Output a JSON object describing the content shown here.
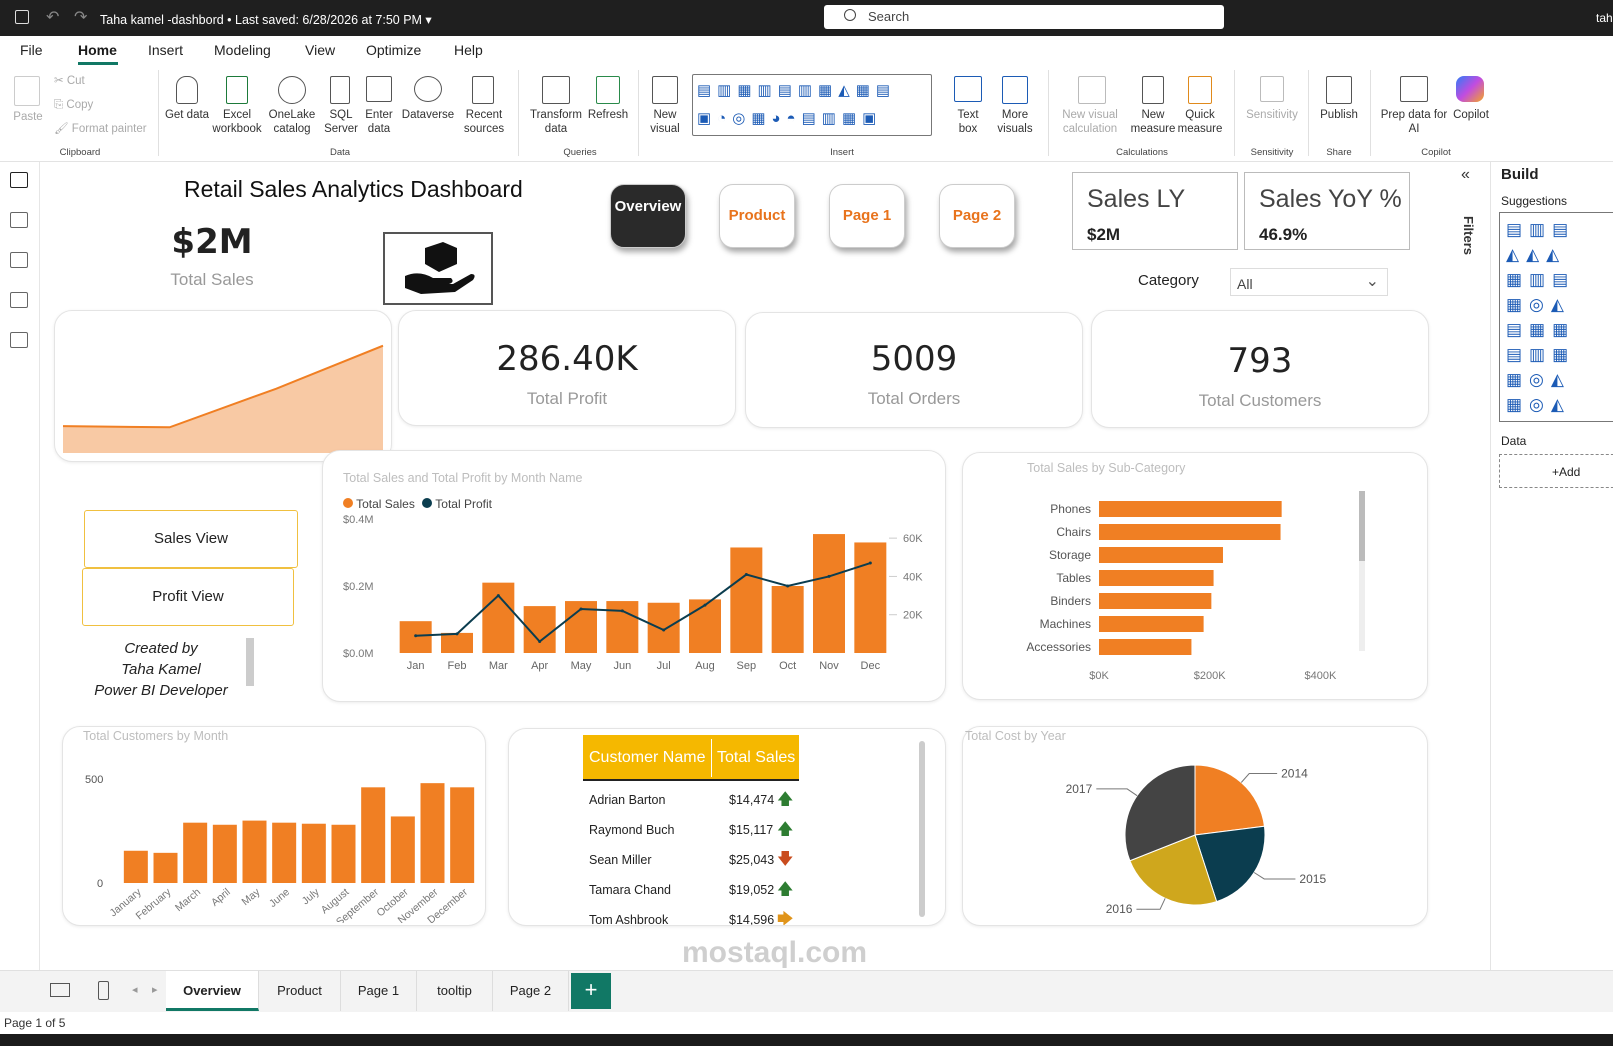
{
  "window": {
    "title": "Taha kamel -dashbord",
    "saved": "Last saved: 6/28/2026 at 7:50 PM",
    "search_placeholder": "Search",
    "user": "tah"
  },
  "menu": [
    "File",
    "Home",
    "Insert",
    "Modeling",
    "View",
    "Optimize",
    "Help"
  ],
  "ribbon": {
    "paste": "Paste",
    "cut": "Cut",
    "copy": "Copy",
    "format_painter": "Format painter",
    "clipboard": "Clipboard",
    "get_data": "Get data",
    "excel": "Excel workbook",
    "onelake": "OneLake catalog",
    "sql": "SQL Server",
    "enter": "Enter data",
    "dataverse": "Dataverse",
    "recent": "Recent sources",
    "data": "Data",
    "transform": "Transform data",
    "refresh": "Refresh",
    "queries": "Queries",
    "new_visual": "New visual",
    "text_box": "Text box",
    "more_visuals": "More visuals",
    "insert": "Insert",
    "new_visual_calc": "New visual calculation",
    "new_measure": "New measure",
    "quick_measure": "Quick measure",
    "calculations": "Calculations",
    "sensitivity": "Sensitivity",
    "sensitivity_group": "Sensitivity",
    "publish": "Publish",
    "share": "Share",
    "prep": "Prep data for AI",
    "copilot": "Copilot",
    "copilot_group": "Copilot"
  },
  "report": {
    "title": "Retail Sales Analytics Dashboard",
    "total_sales": {
      "value": "$2M",
      "label": "Total Sales"
    },
    "nav": {
      "overview": "Overview",
      "product": "Product",
      "page1": "Page 1",
      "page2": "Page 2"
    },
    "sales_ly": {
      "label": "Sales LY",
      "value": "$2M"
    },
    "sales_yoy": {
      "label": "Sales YoY %",
      "value": "46.9%"
    },
    "category": {
      "label": "Category",
      "value": "All"
    },
    "profit": {
      "value": "286.40K",
      "label": "Total Profit"
    },
    "orders": {
      "value": "5009",
      "label": "Total Orders"
    },
    "customers": {
      "value": "793",
      "label": "Total Customers"
    },
    "sales_view": "Sales View",
    "profit_view": "Profit View",
    "credit": [
      "Created by",
      "Taha Kamel",
      "Power BI Developer"
    ],
    "customer_table": {
      "headers": [
        "Customer Name",
        "Total Sales"
      ],
      "rows": [
        {
          "name": "Adrian Barton",
          "sales": "$14,474",
          "trend": "up"
        },
        {
          "name": "Raymond Buch",
          "sales": "$15,117",
          "trend": "up"
        },
        {
          "name": "Sean Miller",
          "sales": "$25,043",
          "trend": "down"
        },
        {
          "name": "Tamara Chand",
          "sales": "$19,052",
          "trend": "up"
        },
        {
          "name": "Tom Ashbrook",
          "sales": "$14,596",
          "trend": "right"
        }
      ]
    }
  },
  "chart_data": [
    {
      "type": "area",
      "title": "",
      "x": [
        1,
        2,
        3,
        4
      ],
      "values": [
        0.25,
        0.24,
        0.6,
        1.0
      ],
      "ylim": [
        0,
        1.1
      ]
    },
    {
      "type": "bar",
      "title": "Total Sales and Total Profit by Month Name",
      "categories": [
        "Jan",
        "Feb",
        "Mar",
        "Apr",
        "May",
        "Jun",
        "Jul",
        "Aug",
        "Sep",
        "Oct",
        "Nov",
        "Dec"
      ],
      "series": [
        {
          "name": "Total Sales",
          "values": [
            95000,
            60000,
            210000,
            140000,
            155000,
            155000,
            150000,
            160000,
            315000,
            200000,
            355000,
            330000
          ]
        },
        {
          "name": "Total Profit",
          "values": [
            9000,
            10000,
            30000,
            6000,
            23000,
            22000,
            12000,
            25000,
            41000,
            35000,
            40000,
            47000
          ]
        }
      ],
      "yticks": [
        "$0.0M",
        "$0.2M",
        "$0.4M"
      ],
      "y2ticks": [
        "20K",
        "40K",
        "60K"
      ],
      "ylim": [
        0,
        400000
      ],
      "y2lim": [
        0,
        70000
      ],
      "legend": "top-left"
    },
    {
      "type": "bar",
      "title": "Total Sales by Sub-Category",
      "categories": [
        "Phones",
        "Chairs",
        "Storage",
        "Tables",
        "Binders",
        "Machines",
        "Accessories"
      ],
      "values": [
        330000,
        328000,
        224000,
        207000,
        203000,
        189000,
        167000
      ],
      "xticks": [
        "$0K",
        "$200K",
        "$400K"
      ],
      "xlim": [
        0,
        430000
      ]
    },
    {
      "type": "bar",
      "title": "Total Customers by Month",
      "categories": [
        "January",
        "February",
        "March",
        "April",
        "May",
        "June",
        "July",
        "August",
        "September",
        "October",
        "November",
        "December"
      ],
      "values": [
        155,
        145,
        290,
        280,
        300,
        290,
        285,
        280,
        460,
        320,
        480,
        460
      ],
      "yticks": [
        "0",
        "500"
      ],
      "ylim": [
        0,
        500
      ]
    },
    {
      "type": "pie",
      "title": "Total Cost by Year",
      "labels": [
        "2014",
        "2015",
        "2016",
        "2017"
      ],
      "values": [
        23,
        22,
        24,
        31
      ],
      "colors": [
        "#f07f23",
        "#0b3d4f",
        "#cfa71d",
        "#444444"
      ]
    }
  ],
  "tabs": [
    "Overview",
    "Product",
    "Page 1",
    "tooltip",
    "Page 2"
  ],
  "status": "Page 1 of 5",
  "build": {
    "title": "Build",
    "suggestions": "Suggestions",
    "data": "Data",
    "add": "+Add",
    "filters": "Filters"
  },
  "colors": {
    "accent": "#f07f23",
    "teal": "#117865"
  }
}
